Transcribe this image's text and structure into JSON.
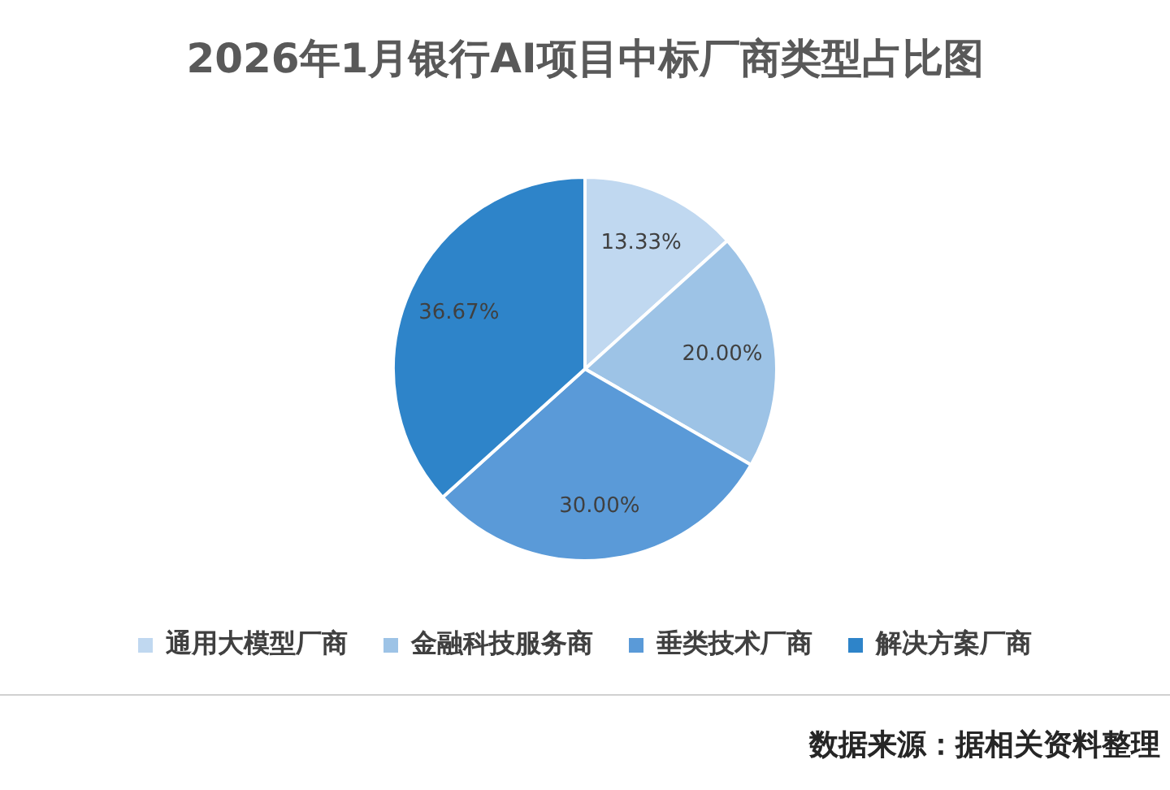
{
  "chart_data": {
    "type": "pie",
    "title": "2026年1月银行AI项目中标厂商类型占比图",
    "categories": [
      "通用大模型厂商",
      "金融科技服务商",
      "垂类技术厂商",
      "解决方案厂商"
    ],
    "values": [
      13.33,
      20,
      30,
      36.67
    ],
    "value_labels": [
      "13.33%",
      "20.00%",
      "30.00%",
      "36.67%"
    ],
    "colors": [
      "#c0d8f0",
      "#9dc3e6",
      "#5a9ad8",
      "#2e84c9"
    ],
    "legend": "bottom",
    "annotations": [
      "数据来源：据相关资料整理"
    ]
  }
}
